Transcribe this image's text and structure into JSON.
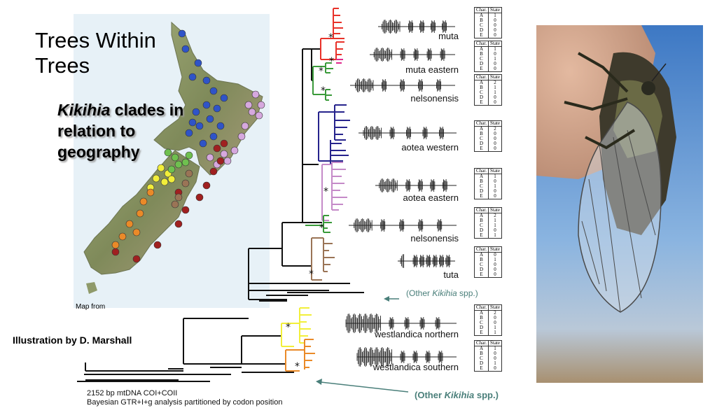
{
  "title": "Trees Within Trees",
  "subtitle": "Kikihia clades in relation to geography",
  "subtitle_italic": "Kikihia",
  "subtitle_rest": " clades in relation to geography",
  "credit": "Illustration by D. Marshall",
  "map_caption": "Map from",
  "method_line1": "2152 bp mtDNA COI+COII",
  "method_line2": "Bayesian GTR+I+g analysis partitioned by codon position",
  "other_label_1": {
    "pre": "(Other ",
    "italic": "Kikihia",
    "post": " spp.)"
  },
  "other_label_2": {
    "pre": "(Other ",
    "italic": "Kikihia",
    "post": " spp.)"
  },
  "char_header": "Char.",
  "state_header": "State",
  "char_letters": "A\nB\nC\nD\nE",
  "clades": [
    {
      "name": "muta",
      "color": "#e8322a",
      "states": "1\n0\n0\n0\n0"
    },
    {
      "name": "muta eastern",
      "color": "#e0288c",
      "states": "1\n0\n1\n0\n0"
    },
    {
      "name": "nelsonensis",
      "color": "#3a9a3a",
      "states": "2\n1\n1\n0\n0"
    },
    {
      "name": "aotea western",
      "color": "#26238c",
      "states": "2\n0\n0\n0\n0"
    },
    {
      "name": "aotea eastern",
      "color": "#c58ac8",
      "states": "1\n0\n1\n0\n0"
    },
    {
      "name": "nelsonensis",
      "color": "#3a9a3a",
      "states": "2\n1\n1\n0\n1"
    },
    {
      "name": "tuta",
      "color": "#9a7456",
      "states": "0\n1\n0\n0\n0"
    },
    {
      "name": "westlandica northern",
      "color": "#f2ef3a",
      "states": "2\n0\n0\n1\n1"
    },
    {
      "name": "westlandica southern",
      "color": "#ea8a28",
      "states": "1\n0\n0\n1\n0"
    }
  ],
  "colors": {
    "sea": "#e7f1f7",
    "land": "#8f9a6a",
    "teal_text": "#4a7f7a",
    "sky": "#6f9fd2"
  }
}
